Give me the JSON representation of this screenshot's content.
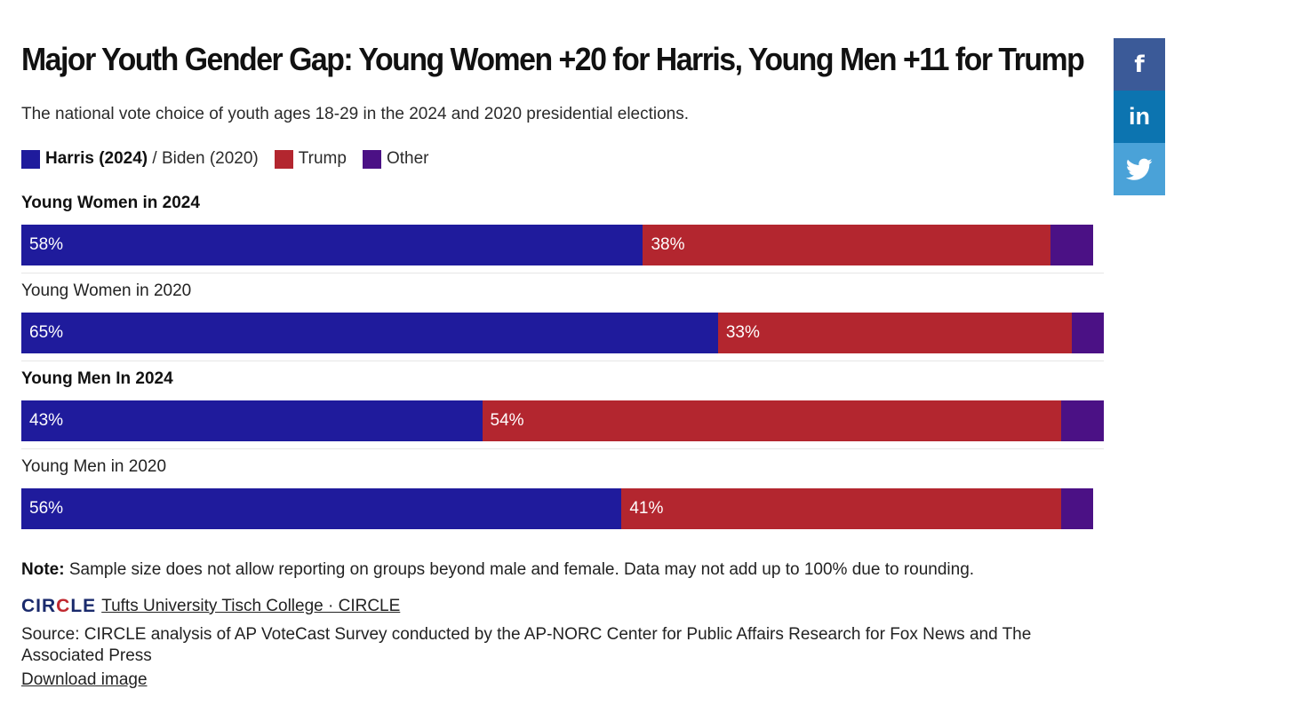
{
  "chart_data": {
    "type": "bar",
    "orientation": "horizontal",
    "stacked": true,
    "title": "Major Youth Gender Gap: Young Women +20 for Harris, Young Men +11 for Trump",
    "subtitle": "The national vote choice of youth ages 18-29 in the 2024 and 2020 presidential elections.",
    "legend": [
      {
        "label": "Harris (2024)",
        "label_suffix": " / Biden (2020)",
        "color": "#1f1b9c"
      },
      {
        "label": "Trump",
        "color": "#b3262f"
      },
      {
        "label": "Other",
        "color": "#4b1185"
      }
    ],
    "categories": [
      "Young Women in 2024",
      "Young Women in 2020",
      "Young Men In 2024",
      "Young Men in 2020"
    ],
    "category_bold": [
      true,
      false,
      true,
      false
    ],
    "series": [
      {
        "name": "Harris (2024) / Biden (2020)",
        "values": [
          58,
          65,
          43,
          56
        ],
        "labels": [
          "58%",
          "65%",
          "43%",
          "56%"
        ],
        "color": "#1f1b9c"
      },
      {
        "name": "Trump",
        "values": [
          38,
          33,
          54,
          41
        ],
        "labels": [
          "38%",
          "33%",
          "54%",
          "41%"
        ],
        "color": "#b3262f"
      },
      {
        "name": "Other",
        "values": [
          4,
          3,
          4,
          3
        ],
        "labels": [
          "",
          "",
          "",
          ""
        ],
        "color": "#4b1185"
      }
    ],
    "xlim": [
      0,
      101
    ],
    "grid": false,
    "legend_position": "top-left"
  },
  "footer": {
    "note_label": "Note:",
    "note_text": " Sample size does not allow reporting on groups beyond male and female. Data may not add up to 100% due to rounding.",
    "brand_logo_left": "CIR",
    "brand_logo_mid": "C",
    "brand_logo_right": "LE",
    "brand_link": "Tufts University Tisch College · CIRCLE",
    "source": "Source: CIRCLE analysis of AP VoteCast Survey conducted by the AP-NORC Center for Public Affairs Research for Fox News and The Associated Press",
    "download": "Download image"
  },
  "social": {
    "facebook_glyph": "f",
    "linkedin_glyph": "in",
    "icons": [
      "facebook-icon",
      "linkedin-icon",
      "twitter-icon"
    ]
  }
}
